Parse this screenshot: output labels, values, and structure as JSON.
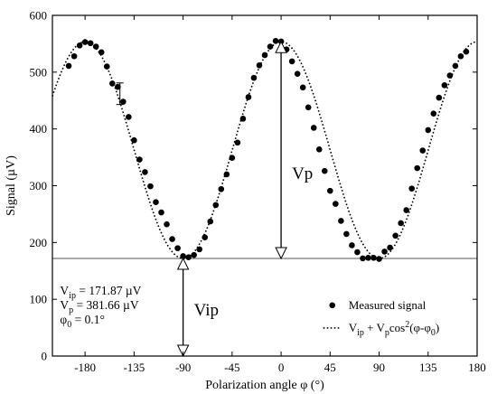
{
  "chart_data": {
    "type": "scatter",
    "xlabel": "Polarization angle φ (°)",
    "ylabel": "Signal (µV)",
    "xlim": [
      -210,
      180
    ],
    "ylim": [
      0,
      600
    ],
    "xticks": [
      -180,
      -135,
      -90,
      -45,
      0,
      45,
      90,
      135,
      180
    ],
    "yticks": [
      0,
      100,
      200,
      300,
      400,
      500,
      600
    ],
    "grid": false,
    "legend_position": "bottom-right",
    "series": [
      {
        "name": "Measured signal",
        "kind": "markers",
        "x": [
          -195,
          -190,
          -185,
          -180,
          -175,
          -170,
          -165,
          -160,
          -155,
          -150,
          -145,
          -140,
          -135,
          -130,
          -125,
          -120,
          -115,
          -110,
          -105,
          -100,
          -95,
          -90,
          -85,
          -80,
          -75,
          -70,
          -65,
          -60,
          -55,
          -50,
          -45,
          -40,
          -35,
          -30,
          -25,
          -20,
          -15,
          -10,
          -5,
          0,
          5,
          10,
          15,
          20,
          25,
          30,
          35,
          40,
          45,
          50,
          55,
          60,
          65,
          70,
          75,
          80,
          85,
          90,
          95,
          100,
          105,
          110,
          115,
          120,
          125,
          130,
          135,
          140,
          145,
          150,
          155,
          160,
          165,
          170
        ],
        "y": [
          511,
          528,
          547,
          553,
          551,
          545,
          535,
          510,
          480,
          474,
          448,
          421,
          380,
          346,
          324,
          299,
          271,
          253,
          232,
          206,
          190,
          176,
          174,
          178,
          188,
          209,
          237,
          266,
          294,
          320,
          349,
          376,
          418,
          456,
          490,
          512,
          530,
          545,
          555,
          554,
          540,
          519,
          497,
          473,
          438,
          402,
          364,
          326,
          291,
          268,
          238,
          215,
          195,
          183,
          172,
          173,
          173,
          171,
          184,
          191,
          212,
          234,
          257,
          295,
          331,
          362,
          398,
          427,
          455,
          477,
          494,
          511,
          528,
          536
        ]
      },
      {
        "name": "Vip + Vpcos2(φ-φ0)",
        "kind": "fit-curve",
        "vip": 171.87,
        "vp": 381.66,
        "phi0": 0.1
      }
    ],
    "error_bar": {
      "x": -148,
      "y": 462,
      "low": 443,
      "high": 481
    },
    "reference_line_y": 171.87,
    "annotations": {
      "vp_arrow": {
        "x": 0,
        "from": 171.87,
        "to": 553.53,
        "label": "Vp"
      },
      "vip_arrow": {
        "x": -90,
        "from": 0,
        "to": 171.87,
        "label": "Vip"
      }
    },
    "parameters": [
      {
        "sym": "V",
        "sub": "ip",
        "text": " = 171.87 µV"
      },
      {
        "sym": "V",
        "sub": "p",
        "text": " = 381.66 µV"
      },
      {
        "sym": "φ",
        "sub": "0",
        "text": " = 0.1°"
      }
    ],
    "legend": [
      {
        "label": "Measured signal",
        "marker": "dot"
      },
      {
        "label": "V<ip> + V<p>cos<2>(φ-φ<0>)",
        "marker": "dotted-line"
      }
    ]
  }
}
